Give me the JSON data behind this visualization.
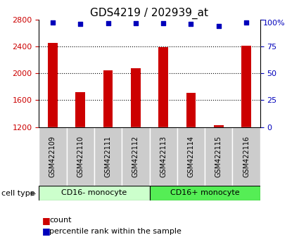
{
  "title": "GDS4219 / 202939_at",
  "samples": [
    "GSM422109",
    "GSM422110",
    "GSM422111",
    "GSM422112",
    "GSM422113",
    "GSM422114",
    "GSM422115",
    "GSM422116"
  ],
  "counts": [
    2460,
    1720,
    2050,
    2080,
    2390,
    1710,
    1230,
    2410
  ],
  "percentile_ranks": [
    97.5,
    96.5,
    97.0,
    97.0,
    97.0,
    96.5,
    94.5,
    97.5
  ],
  "group_labels": [
    "CD16- monocyte",
    "CD16+ monocyte"
  ],
  "group_colors": [
    "#ccffcc",
    "#55ee55"
  ],
  "ylim_left": [
    1200,
    2800
  ],
  "ylim_right": [
    0,
    100
  ],
  "yticks_left": [
    1200,
    1600,
    2000,
    2400,
    2800
  ],
  "yticks_right": [
    0,
    25,
    50,
    75,
    100
  ],
  "bar_color": "#cc0000",
  "dot_color": "#0000bb",
  "bar_width": 0.35,
  "title_fontsize": 11,
  "axis_color_left": "#cc0000",
  "axis_color_right": "#0000bb",
  "grid_color": "black",
  "sample_bg_color": "#cccccc",
  "legend_count_label": "count",
  "legend_pct_label": "percentile rank within the sample",
  "cell_type_label": "cell type"
}
